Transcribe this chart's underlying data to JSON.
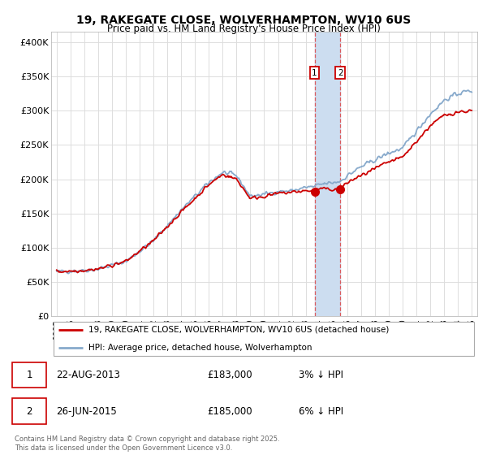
{
  "title": "19, RAKEGATE CLOSE, WOLVERHAMPTON, WV10 6US",
  "subtitle": "Price paid vs. HM Land Registry's House Price Index (HPI)",
  "legend_entry1": "19, RAKEGATE CLOSE, WOLVERHAMPTON, WV10 6US (detached house)",
  "legend_entry2": "HPI: Average price, detached house, Wolverhampton",
  "ylabel_ticks": [
    "£0",
    "£50K",
    "£100K",
    "£150K",
    "£200K",
    "£250K",
    "£300K",
    "£350K",
    "£400K"
  ],
  "ytick_vals": [
    0,
    50000,
    100000,
    150000,
    200000,
    250000,
    300000,
    350000,
    400000
  ],
  "ylim": [
    0,
    415000
  ],
  "xlim_start": 1994.6,
  "xlim_end": 2025.4,
  "transaction1_year": 2013.64,
  "transaction2_year": 2015.49,
  "transaction1_price": 183000,
  "transaction2_price": 185000,
  "transaction1_label": "1",
  "transaction2_label": "2",
  "transaction1_date": "22-AUG-2013",
  "transaction2_date": "26-JUN-2015",
  "transaction1_price_str": "£183,000",
  "transaction2_price_str": "£185,000",
  "transaction1_pct": "3% ↓ HPI",
  "transaction2_pct": "6% ↓ HPI",
  "footer": "Contains HM Land Registry data © Crown copyright and database right 2025.\nThis data is licensed under the Open Government Licence v3.0.",
  "line_color_red": "#cc0000",
  "line_color_blue": "#88aacc",
  "bg_color": "#ffffff",
  "grid_color": "#dddddd",
  "vline_color": "#dd4444",
  "span_color": "#ccddf0",
  "marker_box_color": "#cc0000",
  "dot_color": "#cc0000"
}
